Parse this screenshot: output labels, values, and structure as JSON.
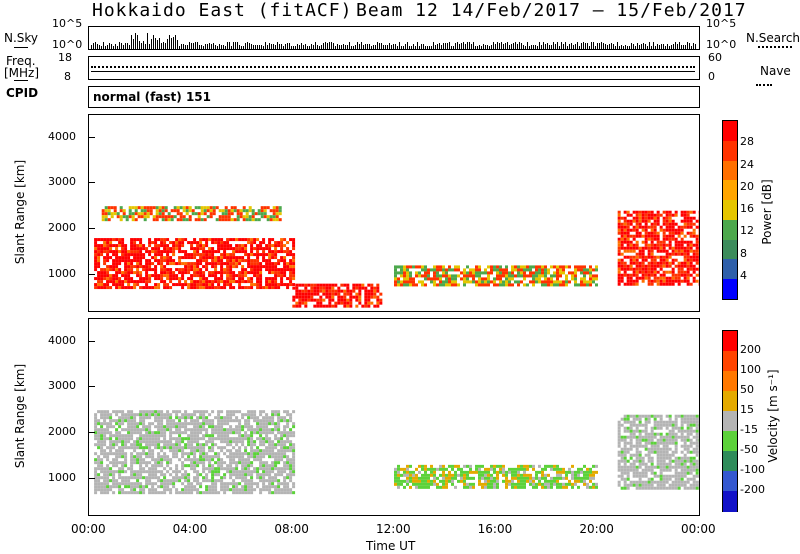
{
  "header": {
    "site": "Hokkaido East (fitACF)",
    "beam_date": "Beam 12   14/Feb/2017 – 15/Feb/2017"
  },
  "side_labels": {
    "nsky": "N.Sky",
    "freq": "Freq.",
    "mhz": "[MHz]",
    "cpid": "CPID",
    "nsearch": "N.Search",
    "nave": "Nave"
  },
  "cpid_text": "normal (fast) 151",
  "colors": {
    "power_scale": [
      "#0000ff",
      "#2e5faa",
      "#3c8c5c",
      "#4ca84c",
      "#e5c600",
      "#ffa500",
      "#ff7000",
      "#ff3300",
      "#ff0000"
    ],
    "velocity_scale": [
      "#1212c8",
      "#3458d0",
      "#2e8c5a",
      "#5cd23a",
      "#b4b4b4",
      "#e4aa00",
      "#ff7800",
      "#ff4400",
      "#ff0000"
    ]
  },
  "chart_data": [
    {
      "type": "line",
      "panel": "noise",
      "left_ticks": [
        "10^5",
        "10^0"
      ],
      "right_ticks": [
        "10^5",
        "10^0"
      ]
    },
    {
      "type": "line",
      "panel": "frequency",
      "left_ticks": [
        "18",
        "8"
      ],
      "right_ticks": [
        "60",
        "0"
      ]
    },
    {
      "type": "heatmap",
      "panel": "power",
      "ylabel": "Slant Range [km]",
      "ylim": [
        200,
        4500
      ],
      "y_ticks": [
        "1000",
        "2000",
        "3000",
        "4000"
      ],
      "colorbar_label": "Power [dB]",
      "colorbar_ticks": [
        "28",
        "24",
        "20",
        "16",
        "12",
        "8",
        "4"
      ],
      "regions": [
        {
          "x_start_h": 0.2,
          "x_end_h": 8.0,
          "y_start_km": 700,
          "y_end_km": 1800,
          "level": "high"
        },
        {
          "x_start_h": 20.8,
          "x_end_h": 24.0,
          "y_start_km": 800,
          "y_end_km": 2400,
          "level": "high"
        },
        {
          "x_start_h": 12.0,
          "x_end_h": 20.0,
          "y_start_km": 800,
          "y_end_km": 1200,
          "level": "medium"
        },
        {
          "x_start_h": 8.0,
          "x_end_h": 11.5,
          "y_start_km": 300,
          "y_end_km": 800,
          "level": "high"
        },
        {
          "x_start_h": 0.5,
          "x_end_h": 7.5,
          "y_start_km": 2200,
          "y_end_km": 2500,
          "level": "medium"
        }
      ]
    },
    {
      "type": "heatmap",
      "panel": "velocity",
      "xlabel": "Time UT",
      "ylabel": "Slant Range [km]",
      "ylim": [
        200,
        4500
      ],
      "y_ticks": [
        "1000",
        "2000",
        "3000",
        "4000"
      ],
      "x_ticks": [
        "00:00",
        "04:00",
        "08:00",
        "12:00",
        "16:00",
        "20:00",
        "00:00"
      ],
      "colorbar_label": "Velocity [m s⁻¹]",
      "colorbar_ticks": [
        "200",
        "100",
        "50",
        "15",
        "-15",
        "-50",
        "-100",
        "-200"
      ],
      "regions": [
        {
          "x_start_h": 0.2,
          "x_end_h": 8.0,
          "y_start_km": 700,
          "y_end_km": 2500,
          "level": "ground"
        },
        {
          "x_start_h": 20.8,
          "x_end_h": 24.0,
          "y_start_km": 800,
          "y_end_km": 2400,
          "level": "ground"
        },
        {
          "x_start_h": 12.0,
          "x_end_h": 20.0,
          "y_start_km": 800,
          "y_end_km": 1300,
          "level": "mixed"
        }
      ]
    }
  ]
}
